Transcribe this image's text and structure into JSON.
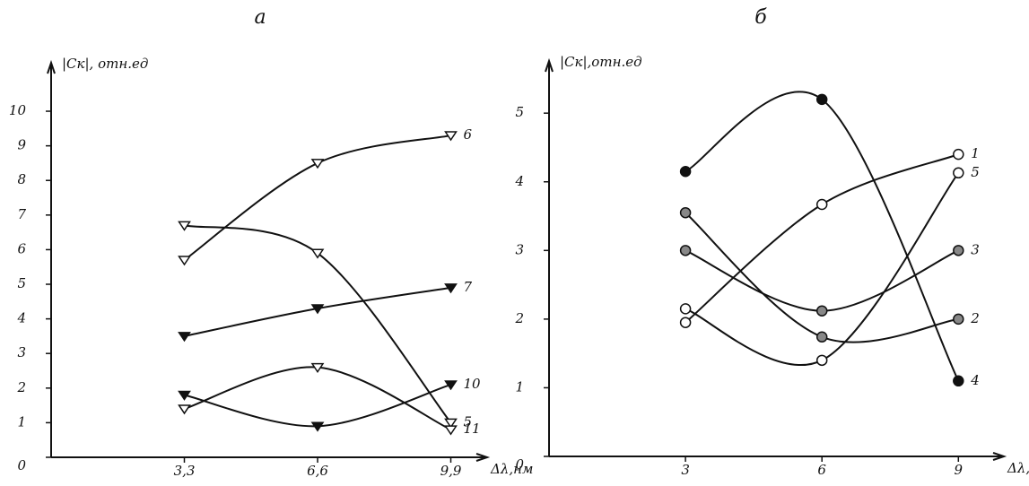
{
  "chart_data": [
    {
      "type": "line",
      "title": "а",
      "ylabel": "|Cк|, отн.ед",
      "xlabel": "Δλ,нм",
      "color": "#111",
      "marker": "triangle",
      "x": [
        3.3,
        6.6,
        9.9
      ],
      "xlim": [
        0,
        10.8
      ],
      "ylim": [
        0,
        11.4
      ],
      "xticks": [
        {
          "value": 3.3,
          "label": "3,3"
        },
        {
          "value": 6.6,
          "label": "6,6"
        },
        {
          "value": 9.9,
          "label": "9,9"
        }
      ],
      "yticks": [
        0,
        1,
        2,
        3,
        4,
        5,
        6,
        7,
        8,
        9,
        10
      ],
      "series": [
        {
          "name": "6",
          "color": "#111",
          "marker_fill": "#fff",
          "values": [
            5.7,
            8.5,
            9.3
          ]
        },
        {
          "name": "7",
          "color": "#111",
          "marker_fill": "#111",
          "values": [
            3.5,
            4.3,
            4.9
          ]
        },
        {
          "name": "5",
          "color": "#111",
          "marker_fill": "#fff",
          "values": [
            6.7,
            5.9,
            1.0
          ]
        },
        {
          "name": "10",
          "color": "#111",
          "marker_fill": "#111",
          "values": [
            1.8,
            0.9,
            2.1
          ]
        },
        {
          "name": "11",
          "color": "#111",
          "marker_fill": "#fff",
          "values": [
            1.4,
            2.6,
            0.8
          ]
        }
      ]
    },
    {
      "type": "line",
      "title": "б",
      "ylabel": "|Cк|,отн.ед",
      "xlabel": "Δλ,нм",
      "color": "#111",
      "marker": "circle",
      "x": [
        3,
        6,
        9
      ],
      "xlim": [
        0,
        10
      ],
      "ylim": [
        0,
        5.76
      ],
      "xticks": [
        3,
        6,
        9
      ],
      "yticks": [
        0,
        1,
        2,
        3,
        4,
        5
      ],
      "series": [
        {
          "name": "1",
          "color": "#111",
          "marker_fill": "#fff",
          "values": [
            1.95,
            3.67,
            4.4
          ]
        },
        {
          "name": "5",
          "color": "#111",
          "marker_fill": "#fff",
          "values": [
            2.15,
            1.4,
            4.13
          ]
        },
        {
          "name": "3",
          "color": "#111",
          "marker_fill": "#888",
          "values": [
            3.0,
            2.12,
            3.0
          ]
        },
        {
          "name": "2",
          "color": "#111",
          "marker_fill": "#888",
          "values": [
            3.55,
            1.74,
            2.0
          ]
        },
        {
          "name": "4",
          "color": "#111",
          "marker_fill": "#111",
          "values": [
            4.15,
            5.2,
            1.1
          ]
        }
      ]
    }
  ]
}
